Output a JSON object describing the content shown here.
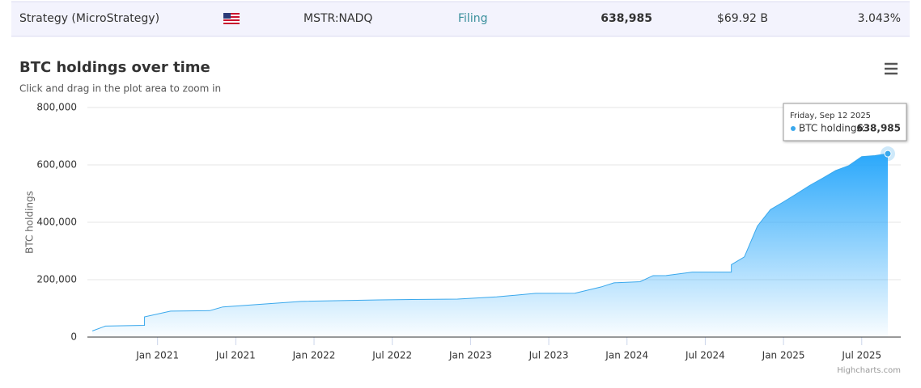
{
  "row": {
    "name": "Strategy (MicroStrategy)",
    "ticker": "MSTR:NADQ",
    "source": "Filing",
    "btc": "638,985",
    "value": "$69.92 B",
    "share": "3.043%"
  },
  "chart_data": {
    "type": "area",
    "title": "BTC holdings over time",
    "subtitle": "Click and drag in the plot area to zoom in",
    "y_label": "BTC holdings",
    "x": [
      "2020-08",
      "2020-09",
      "2020-12",
      "2020-12",
      "2021-02",
      "2021-05",
      "2021-06",
      "2021-12",
      "2022-06",
      "2022-12",
      "2023-03",
      "2023-06",
      "2023-09",
      "2023-11",
      "2023-12",
      "2024-02",
      "2024-03",
      "2024-04",
      "2024-06",
      "2024-09",
      "2024-09",
      "2024-10",
      "2024-11",
      "2024-12",
      "2025-01",
      "2025-02",
      "2025-03",
      "2025-04",
      "2025-05",
      "2025-06",
      "2025-07",
      "2025-08",
      "2025-09"
    ],
    "series": [
      {
        "name": "BTC holdings",
        "color": "#3aa8ec",
        "values": [
          21454,
          38250,
          40824,
          70470,
          90531,
          92079,
          105085,
          124391,
          129699,
          132500,
          140000,
          152333,
          152800,
          174530,
          189150,
          193000,
          214246,
          214400,
          226331,
          226500,
          252220,
          279420,
          386700,
          444262,
          471107,
          499096,
          528185,
          553555,
          580250,
          597325,
          628791,
          632457,
          638985
        ]
      }
    ],
    "xlim": [
      "2020-07",
      "2025-09"
    ],
    "xticks": [
      {
        "value": "2021-01",
        "label": "Jan 2021"
      },
      {
        "value": "2021-07",
        "label": "Jul 2021"
      },
      {
        "value": "2022-01",
        "label": "Jan 2022"
      },
      {
        "value": "2022-07",
        "label": "Jul 2022"
      },
      {
        "value": "2023-01",
        "label": "Jan 2023"
      },
      {
        "value": "2023-07",
        "label": "Jul 2023"
      },
      {
        "value": "2024-01",
        "label": "Jan 2024"
      },
      {
        "value": "2024-07",
        "label": "Jul 2024"
      },
      {
        "value": "2025-01",
        "label": "Jan 2025"
      },
      {
        "value": "2025-07",
        "label": "Jul 2025"
      }
    ],
    "ylim": [
      0,
      800000
    ],
    "yticks": [
      0,
      {
        "value": 200000,
        "label": "200,000"
      },
      {
        "value": 400000,
        "label": "400,000"
      },
      {
        "value": 600000,
        "label": "600,000"
      },
      {
        "value": 800000,
        "label": "800,000"
      }
    ],
    "grid": true,
    "tooltip": {
      "date": "Friday, Sep 12 2025",
      "label": "BTC holdings:",
      "value": "638,985"
    },
    "credits": "Highcharts.com"
  }
}
